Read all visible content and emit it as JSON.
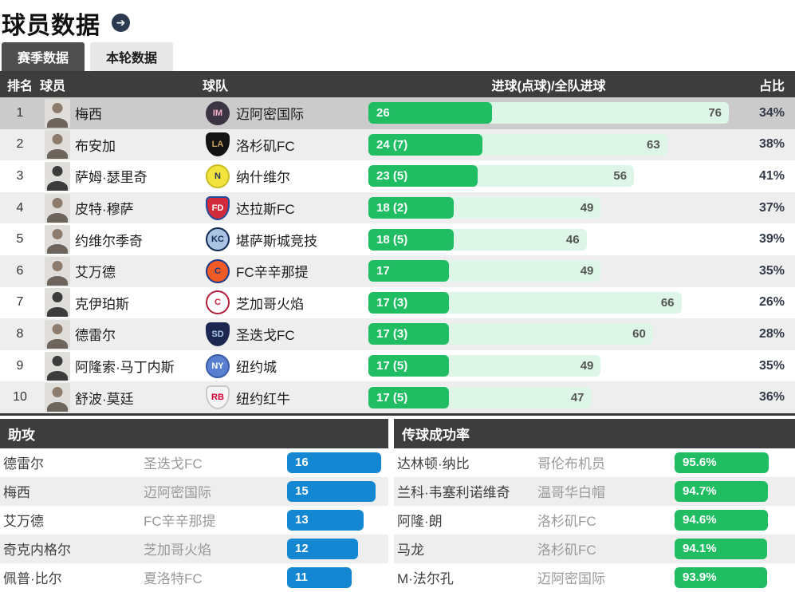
{
  "page": {
    "title": "球员数据"
  },
  "tabs": [
    {
      "label": "赛季数据",
      "active": true
    },
    {
      "label": "本轮数据",
      "active": false
    }
  ],
  "colors": {
    "goals_bar": "#20bd63",
    "goals_track": "#ddf6e8",
    "assist_bar": "#1487d3",
    "pass_bar": "#20bd63",
    "header_bg": "#3d3d3d",
    "highlight_row": "#cbcbcb",
    "alt_row": "#eeeeee"
  },
  "goals_table": {
    "headers": {
      "rank": "排名",
      "player": "球员",
      "team": "球队",
      "bar": "进球(点球)/全队进球",
      "share": "占比"
    },
    "max_total": 76,
    "rows": [
      {
        "rank": "1",
        "player": "梅西",
        "team": "迈阿密国际",
        "goals": 26,
        "goals_label": "26",
        "team_goals": 76,
        "share": "34%",
        "highlight": true,
        "logo": {
          "shape": "circle",
          "bg": "#3b3543",
          "fg": "#f3aec6",
          "text": "IM"
        }
      },
      {
        "rank": "2",
        "player": "布安加",
        "team": "洛杉矶FC",
        "goals": 24,
        "goals_label": "24 (7)",
        "team_goals": 63,
        "share": "38%",
        "logo": {
          "shape": "shield",
          "bg": "#141414",
          "fg": "#c8a45e",
          "text": "LA"
        }
      },
      {
        "rank": "3",
        "player": "萨姆·瑟里奇",
        "team": "纳什维尔",
        "goals": 23,
        "goals_label": "23 (5)",
        "team_goals": 56,
        "share": "41%",
        "avatar": "dark",
        "logo": {
          "shape": "circle",
          "bg": "#f2e43c",
          "fg": "#28355c",
          "text": "N",
          "border": "#c9bd2a"
        }
      },
      {
        "rank": "4",
        "player": "皮特·穆萨",
        "team": "达拉斯FC",
        "goals": 18,
        "goals_label": "18 (2)",
        "team_goals": 49,
        "share": "37%",
        "logo": {
          "shape": "shield",
          "bg": "#d22b3c",
          "fg": "#ffffff",
          "text": "FD",
          "border": "#1f4ea0"
        }
      },
      {
        "rank": "5",
        "player": "约维尔季奇",
        "team": "堪萨斯城竞技",
        "goals": 18,
        "goals_label": "18 (5)",
        "team_goals": 46,
        "share": "39%",
        "logo": {
          "shape": "circle",
          "bg": "#aac3e2",
          "fg": "#122a55",
          "text": "KC",
          "border": "#122a55"
        }
      },
      {
        "rank": "6",
        "player": "艾万德",
        "team": "FC辛辛那提",
        "goals": 17,
        "goals_label": "17",
        "team_goals": 49,
        "share": "35%",
        "logo": {
          "shape": "circle",
          "bg": "#f05a24",
          "fg": "#1b3c8c",
          "text": "C",
          "border": "#1b3c8c"
        }
      },
      {
        "rank": "7",
        "player": "克伊珀斯",
        "team": "芝加哥火焰",
        "goals": 17,
        "goals_label": "17 (3)",
        "team_goals": 66,
        "share": "26%",
        "avatar": "dark",
        "logo": {
          "shape": "circle",
          "bg": "#ffffff",
          "fg": "#cf1f3c",
          "text": "C",
          "border": "#b01e39"
        }
      },
      {
        "rank": "8",
        "player": "德雷尔",
        "team": "圣迭戈FC",
        "goals": 17,
        "goals_label": "17 (3)",
        "team_goals": 60,
        "share": "28%",
        "logo": {
          "shape": "shield",
          "bg": "#1b2750",
          "fg": "#a8c8e8",
          "text": "SD"
        }
      },
      {
        "rank": "9",
        "player": "阿隆索·马丁内斯",
        "team": "纽约城",
        "goals": 17,
        "goals_label": "17 (5)",
        "team_goals": 49,
        "share": "35%",
        "avatar": "dark",
        "logo": {
          "shape": "circle",
          "bg": "#587fd0",
          "fg": "#ffffff",
          "text": "NY",
          "border": "#3a5da8"
        }
      },
      {
        "rank": "10",
        "player": "舒波·莫廷",
        "team": "纽约红牛",
        "goals": 17,
        "goals_label": "17 (5)",
        "team_goals": 47,
        "share": "36%",
        "logo": {
          "shape": "shield",
          "bg": "#f5f5f5",
          "fg": "#d50032",
          "text": "RB",
          "border": "#c9c9c9"
        }
      }
    ]
  },
  "assists": {
    "title": "助攻",
    "max": 16,
    "rows": [
      {
        "player": "德雷尔",
        "team": "圣迭戈FC",
        "value": 16,
        "label": "16"
      },
      {
        "player": "梅西",
        "team": "迈阿密国际",
        "value": 15,
        "label": "15"
      },
      {
        "player": "艾万德",
        "team": "FC辛辛那提",
        "value": 13,
        "label": "13"
      },
      {
        "player": "奇克内格尔",
        "team": "芝加哥火焰",
        "value": 12,
        "label": "12"
      },
      {
        "player": "佩普·比尔",
        "team": "夏洛特FC",
        "value": 11,
        "label": "11"
      }
    ]
  },
  "passing": {
    "title": "传球成功率",
    "max": 95.6,
    "rows": [
      {
        "player": "达林顿·纳比",
        "team": "哥伦布机员",
        "value": 95.6,
        "label": "95.6%"
      },
      {
        "player": "兰科·韦塞利诺维奇",
        "team": "温哥华白帽",
        "value": 94.7,
        "label": "94.7%"
      },
      {
        "player": "阿隆·朗",
        "team": "洛杉矶FC",
        "value": 94.6,
        "label": "94.6%"
      },
      {
        "player": "马龙",
        "team": "洛杉矶FC",
        "value": 94.1,
        "label": "94.1%"
      },
      {
        "player": "M·法尔孔",
        "team": "迈阿密国际",
        "value": 93.9,
        "label": "93.9%"
      }
    ]
  }
}
